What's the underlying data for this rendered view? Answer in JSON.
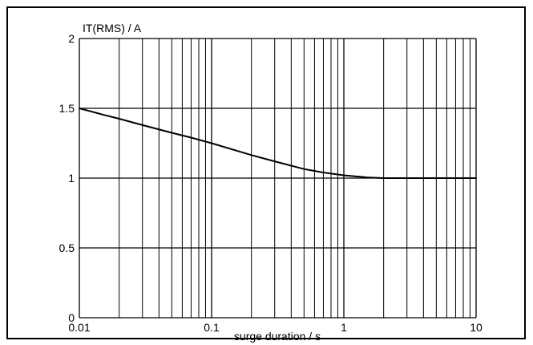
{
  "chart_data": {
    "type": "line",
    "title": "",
    "ylabel": "IT(RMS) / A",
    "xlabel": "surge duration / s",
    "x_scale": "log",
    "xlim": [
      0.01,
      10
    ],
    "ylim": [
      0,
      2
    ],
    "grid": true,
    "x_ticks": [
      0.01,
      0.1,
      1,
      10
    ],
    "x_tick_labels": [
      "0.01",
      "0.1",
      "1",
      "10"
    ],
    "y_ticks": [
      0,
      0.5,
      1,
      1.5,
      2
    ],
    "y_tick_labels": [
      "0",
      "0.5",
      "1",
      "1.5",
      "2"
    ],
    "series": [
      {
        "x": [
          0.01,
          0.015,
          0.02,
          0.03,
          0.05,
          0.07,
          0.1,
          0.15,
          0.2,
          0.3,
          0.5,
          0.7,
          1,
          1.5,
          2,
          3,
          5,
          10
        ],
        "y": [
          1.5,
          1.455,
          1.425,
          1.38,
          1.325,
          1.29,
          1.25,
          1.2,
          1.165,
          1.12,
          1.065,
          1.04,
          1.02,
          1.005,
          1.0,
          1.0,
          1.0,
          1.0
        ]
      }
    ]
  }
}
